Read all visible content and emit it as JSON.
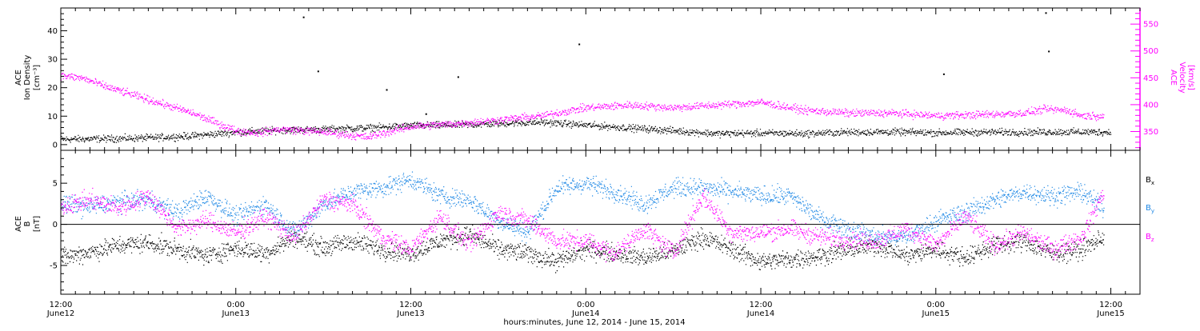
{
  "colors": {
    "black": "#000000",
    "blue": "#1e88e5",
    "magenta": "#ff00ff"
  },
  "xaxis": {
    "title": "hours:minutes, June 12, 2014 - June 15, 2014",
    "ticks": [
      {
        "time": "12:00",
        "day": "June12"
      },
      {
        "time": "0:00",
        "day": "June13"
      },
      {
        "time": "12:00",
        "day": "June13"
      },
      {
        "time": "0:00",
        "day": "June14"
      },
      {
        "time": "12:00",
        "day": "June14"
      },
      {
        "time": "0:00",
        "day": "June15"
      },
      {
        "time": "12:00",
        "day": "June15"
      }
    ],
    "range_hours": [
      0,
      74
    ],
    "major_every_hours": 12,
    "minor_every_hours": 1
  },
  "panels": {
    "top": {
      "left_label": [
        "ACE",
        "Ion Density",
        "[cm⁻³]"
      ],
      "right_label": [
        "ACE",
        "Velocity",
        "[km/s]"
      ],
      "left_ticks": [
        "0",
        "10",
        "20",
        "30",
        "40"
      ],
      "right_ticks": [
        "350",
        "400",
        "450",
        "500",
        "550"
      ]
    },
    "bottom": {
      "left_label": [
        "ACE",
        "B",
        "[nT]"
      ],
      "left_ticks": [
        "-5",
        "0",
        "5"
      ],
      "legend": [
        {
          "main": "B",
          "sub": "x"
        },
        {
          "main": "B",
          "sub": "y"
        },
        {
          "main": "B",
          "sub": "z"
        }
      ]
    }
  },
  "chart_data": [
    {
      "type": "scatter",
      "panel": "top",
      "ylim_left": [
        -2,
        48
      ],
      "ylim_right": [
        315,
        580
      ],
      "series": [
        {
          "axis": "left",
          "color": "magenta-unused",
          "x": [],
          "y": []
        },
        {
          "axis": "left",
          "color": "black",
          "x": [
            0,
            3,
            6,
            9,
            12,
            15,
            18,
            21,
            24,
            27,
            30,
            33,
            36,
            39,
            42,
            45,
            48,
            51,
            54,
            57,
            60,
            63,
            66,
            69,
            72
          ],
          "y": [
            2,
            2.2,
            2.5,
            3.2,
            4.5,
            5.2,
            5.5,
            6,
            6.8,
            7,
            7.5,
            8,
            7,
            6,
            5,
            4,
            4.2,
            4,
            4.5,
            4.6,
            4.3,
            4.5,
            4.5,
            4.6,
            4.5
          ]
        },
        {
          "axis": "right",
          "color": "magenta",
          "x": [
            0,
            1.5,
            3,
            6,
            9,
            12,
            13.5,
            15,
            18,
            19.5,
            21,
            24,
            27,
            30,
            33,
            36,
            39,
            42,
            45,
            48,
            51,
            54,
            57,
            60,
            63,
            66,
            67.5,
            69,
            70,
            71.5
          ],
          "y": [
            455,
            450,
            435,
            410,
            385,
            352,
            348,
            355,
            350,
            345,
            340,
            360,
            365,
            372,
            380,
            395,
            400,
            395,
            400,
            405,
            390,
            385,
            385,
            380,
            382,
            385,
            392,
            390,
            380,
            380
          ]
        }
      ],
      "outliers": {
        "x": [
          16.6,
          17.6,
          22.3,
          25,
          27.2,
          35.5,
          60.5,
          67.5,
          67.7
        ],
        "y": [
          45,
          26,
          19.5,
          11,
          24,
          35.5,
          25,
          46.5,
          33
        ]
      }
    },
    {
      "type": "scatter",
      "panel": "bottom",
      "ylim": [
        -8.5,
        9
      ],
      "series": [
        {
          "legend": 0,
          "color": "black",
          "x": [
            0,
            2,
            4,
            6,
            8,
            10,
            12,
            14,
            16,
            18,
            20,
            22,
            24,
            26,
            28,
            30,
            32,
            34,
            36,
            38,
            40,
            42,
            44,
            46,
            48,
            50,
            52,
            54,
            56,
            58,
            60,
            62,
            64,
            66,
            68,
            70,
            71.5
          ],
          "y": [
            -4,
            -3.3,
            -2.5,
            -2.2,
            -3,
            -3.8,
            -2.8,
            -3.5,
            -1.5,
            -2.8,
            -2,
            -3,
            -3.5,
            -2,
            -1.2,
            -3,
            -3.5,
            -4.5,
            -3,
            -3.5,
            -4,
            -3.2,
            -1.5,
            -3,
            -4.5,
            -4.2,
            -3.8,
            -3,
            -2.5,
            -3.8,
            -3,
            -4,
            -2.5,
            -2,
            -3.5,
            -3,
            -1.5
          ]
        },
        {
          "legend": 1,
          "color": "blue",
          "x": [
            0,
            2,
            4,
            6,
            8,
            10,
            12,
            14,
            16,
            18,
            20,
            22,
            24,
            26,
            28,
            30,
            32,
            34,
            36,
            38,
            40,
            42,
            44,
            46,
            48,
            50,
            52,
            54,
            56,
            58,
            60,
            62,
            64,
            66,
            68,
            70,
            71.5
          ],
          "y": [
            2.5,
            2.2,
            2.8,
            3,
            1.5,
            3.5,
            1,
            2.5,
            -1,
            2.5,
            4,
            4.5,
            5.5,
            3.5,
            3,
            0.5,
            -1,
            4.5,
            5,
            4,
            2.5,
            4.5,
            4.5,
            4,
            3.5,
            3.5,
            0.8,
            -0.5,
            -1.5,
            -1.5,
            0.5,
            1.5,
            3,
            4,
            3.5,
            4,
            2
          ]
        },
        {
          "legend": 2,
          "color": "magenta",
          "x": [
            0,
            2,
            4,
            6,
            8,
            10,
            12,
            14,
            16,
            18,
            20,
            22,
            24,
            26,
            28,
            30,
            32,
            34,
            36,
            38,
            40,
            42,
            44,
            46,
            48,
            50,
            52,
            54,
            56,
            58,
            60,
            62,
            64,
            66,
            68,
            70,
            71.5
          ],
          "y": [
            2.2,
            3,
            2,
            3.5,
            -0.5,
            0.5,
            -1,
            1,
            -1.5,
            3,
            2.5,
            -1.5,
            -3,
            1,
            -2.5,
            1.5,
            0.5,
            -2,
            -2,
            -3.5,
            -0.5,
            -3.5,
            3.5,
            -1,
            -1,
            -0.5,
            -1.5,
            -1.8,
            -2,
            -0.5,
            -2.5,
            1,
            -2.5,
            -1,
            -3,
            -1.5,
            4
          ]
        }
      ]
    }
  ]
}
